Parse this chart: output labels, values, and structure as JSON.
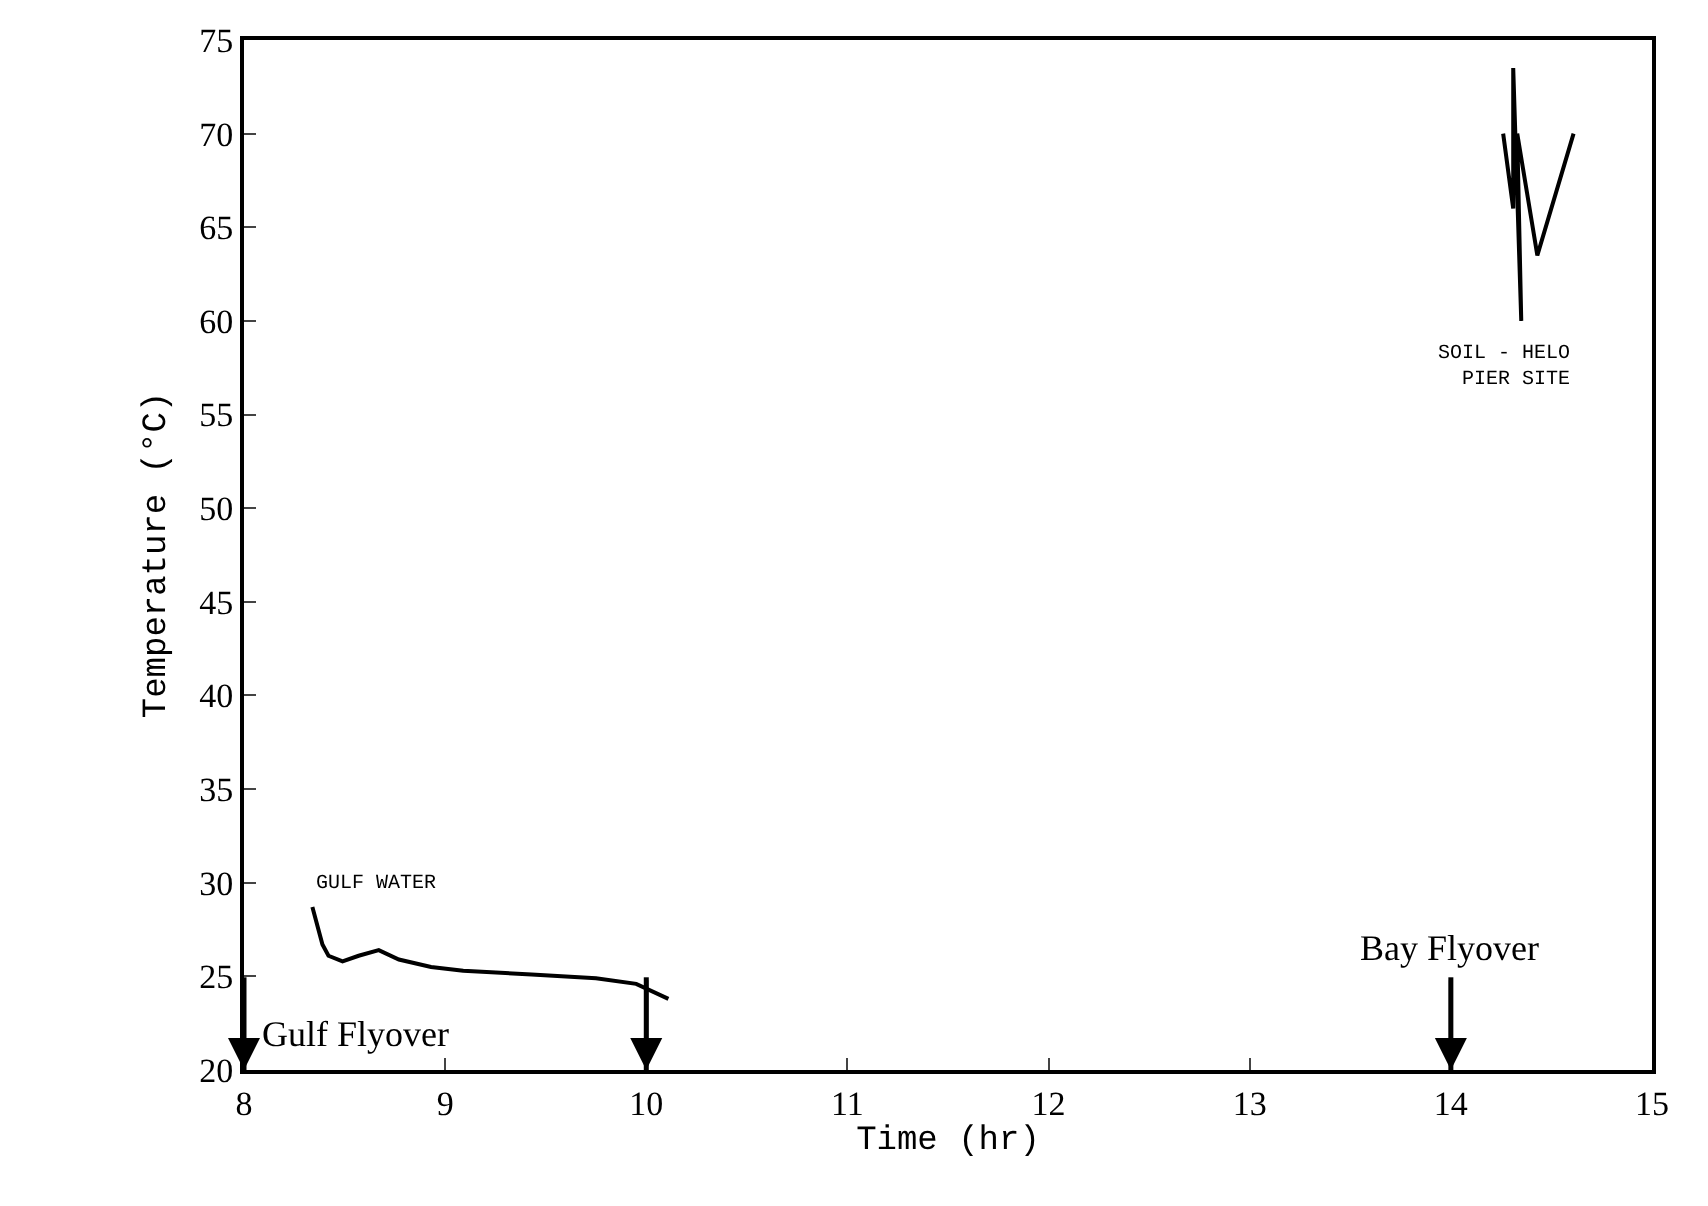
{
  "chart_data": {
    "type": "line",
    "xlabel": "Time (hr)",
    "ylabel": "Temperature (°C)",
    "xlim": [
      8,
      15
    ],
    "xticks": [
      8,
      9,
      10,
      11,
      12,
      13,
      14,
      15
    ],
    "ylim": [
      20,
      75
    ],
    "yticks": [
      20,
      25,
      30,
      35,
      40,
      45,
      50,
      55,
      60,
      65,
      70,
      75
    ],
    "legend": false,
    "series": [
      {
        "name": "GULF WATER",
        "color": "#000000",
        "x": [
          8.34,
          8.39,
          8.42,
          8.49,
          8.57,
          8.67,
          8.77,
          8.93,
          9.09,
          9.43,
          9.75,
          9.95,
          10.11
        ],
        "values": [
          28.7,
          26.7,
          26.1,
          25.8,
          26.1,
          26.4,
          25.9,
          25.5,
          25.3,
          25.1,
          24.9,
          24.6,
          23.8
        ]
      },
      {
        "name": "SOIL - HELO\nPIER SITE",
        "color": "#000000",
        "x": [
          14.26,
          14.31,
          14.31,
          14.35,
          14.33,
          14.43,
          14.61
        ],
        "values": [
          70,
          66,
          73.5,
          60,
          70,
          63.5,
          70
        ]
      }
    ],
    "ref_lines": [
      {
        "axis": "x",
        "value": 8,
        "label": "Gulf Flyover"
      },
      {
        "axis": "x",
        "value": 10,
        "label": null
      },
      {
        "axis": "x",
        "value": 14,
        "label": "Bay Flyover"
      }
    ]
  }
}
